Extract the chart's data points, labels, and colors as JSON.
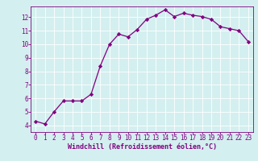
{
  "x": [
    0,
    1,
    2,
    3,
    4,
    5,
    6,
    7,
    8,
    9,
    10,
    11,
    12,
    13,
    14,
    15,
    16,
    17,
    18,
    19,
    20,
    21,
    22,
    23
  ],
  "y": [
    4.3,
    4.1,
    5.0,
    5.8,
    5.8,
    5.8,
    6.3,
    8.4,
    10.0,
    10.75,
    10.55,
    11.1,
    11.85,
    12.15,
    12.55,
    12.05,
    12.3,
    12.15,
    12.05,
    11.85,
    11.3,
    11.15,
    11.0,
    10.2
  ],
  "line_color": "#800080",
  "marker": "D",
  "marker_size": 2.2,
  "bg_color": "#d4efef",
  "grid_color": "#ffffff",
  "xlabel": "Windchill (Refroidissement éolien,°C)",
  "xlim": [
    -0.5,
    23.5
  ],
  "ylim": [
    3.5,
    12.8
  ],
  "xticks": [
    0,
    1,
    2,
    3,
    4,
    5,
    6,
    7,
    8,
    9,
    10,
    11,
    12,
    13,
    14,
    15,
    16,
    17,
    18,
    19,
    20,
    21,
    22,
    23
  ],
  "yticks": [
    4,
    5,
    6,
    7,
    8,
    9,
    10,
    11,
    12
  ],
  "tick_color": "#800080",
  "tick_fontsize": 5.5,
  "xlabel_fontsize": 6.0,
  "axis_color": "#800080",
  "line_width": 0.9
}
